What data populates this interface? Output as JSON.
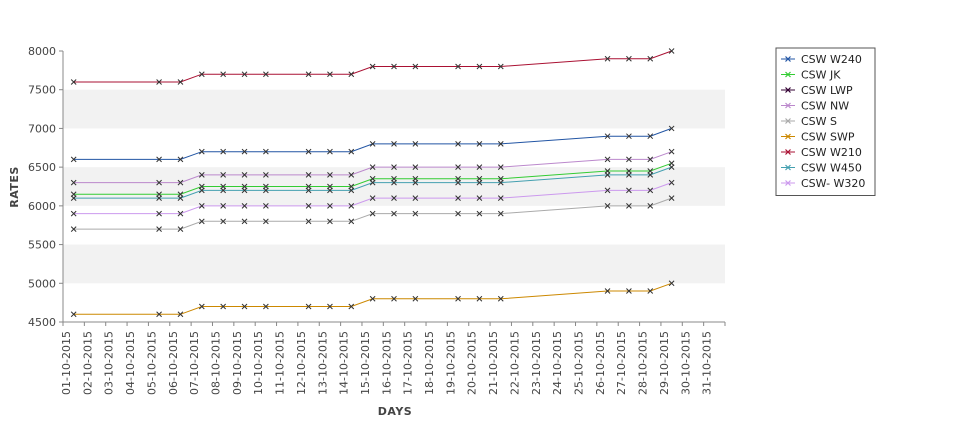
{
  "chart_data": {
    "type": "line",
    "title": "",
    "xlabel": "DAYS",
    "ylabel": "RATES",
    "ylim": [
      4500,
      8000
    ],
    "yticks": [
      4500,
      5000,
      5500,
      6000,
      6500,
      7000,
      7500,
      8000
    ],
    "grid": "alternating horizontal bands",
    "legend": "right",
    "categories": [
      "01-10-2015",
      "02-10-2015",
      "03-10-2015",
      "04-10-2015",
      "05-10-2015",
      "06-10-2015",
      "07-10-2015",
      "08-10-2015",
      "09-10-2015",
      "10-10-2015",
      "11-10-2015",
      "12-10-2015",
      "13-10-2015",
      "14-10-2015",
      "15-10-2015",
      "16-10-2015",
      "17-10-2015",
      "18-10-2015",
      "19-10-2015",
      "20-10-2015",
      "21-10-2015",
      "22-10-2015",
      "23-10-2015",
      "24-10-2015",
      "25-10-2015",
      "26-10-2015",
      "27-10-2015",
      "28-10-2015",
      "29-10-2015",
      "30-10-2015",
      "31-10-2015"
    ],
    "series": [
      {
        "name": "CSW  W240",
        "color": "#2255a4",
        "values": [
          6600,
          null,
          null,
          null,
          6600,
          6600,
          6700,
          6700,
          6700,
          6700,
          null,
          6700,
          6700,
          6700,
          6800,
          6800,
          6800,
          null,
          6800,
          6800,
          6800,
          null,
          null,
          null,
          null,
          6900,
          6900,
          6900,
          7000,
          null,
          null
        ]
      },
      {
        "name": "CSW JK",
        "color": "#33cc33",
        "values": [
          6150,
          null,
          null,
          null,
          6150,
          6150,
          6250,
          6250,
          6250,
          6250,
          null,
          6250,
          6250,
          6250,
          6350,
          6350,
          6350,
          null,
          6350,
          6350,
          6350,
          null,
          null,
          null,
          null,
          6450,
          6450,
          6450,
          6550,
          null,
          null
        ]
      },
      {
        "name": "CSW LWP",
        "color": "#330033",
        "values": [
          null,
          null,
          null,
          null,
          null,
          null,
          null,
          null,
          null,
          null,
          null,
          null,
          null,
          null,
          null,
          null,
          null,
          null,
          null,
          null,
          null,
          null,
          null,
          null,
          null,
          null,
          null,
          null,
          null,
          null,
          null
        ]
      },
      {
        "name": "CSW NW",
        "color": "#bb88cc",
        "values": [
          6300,
          null,
          null,
          null,
          6300,
          6300,
          6400,
          6400,
          6400,
          6400,
          null,
          6400,
          6400,
          6400,
          6500,
          6500,
          6500,
          null,
          6500,
          6500,
          6500,
          null,
          null,
          null,
          null,
          6600,
          6600,
          6600,
          6700,
          null,
          null
        ]
      },
      {
        "name": "CSW S",
        "color": "#aaaaaa",
        "values": [
          5700,
          null,
          null,
          null,
          5700,
          5700,
          5800,
          5800,
          5800,
          5800,
          null,
          5800,
          5800,
          5800,
          5900,
          5900,
          5900,
          null,
          5900,
          5900,
          5900,
          null,
          null,
          null,
          null,
          6000,
          6000,
          6000,
          6100,
          null,
          null
        ]
      },
      {
        "name": "CSW SWP",
        "color": "#cc8800",
        "values": [
          4600,
          null,
          null,
          null,
          4600,
          4600,
          4700,
          4700,
          4700,
          4700,
          null,
          4700,
          4700,
          4700,
          4800,
          4800,
          4800,
          null,
          4800,
          4800,
          4800,
          null,
          null,
          null,
          null,
          4900,
          4900,
          4900,
          5000,
          null,
          null
        ]
      },
      {
        "name": "CSW W210",
        "color": "#aa1133",
        "values": [
          7600,
          null,
          null,
          null,
          7600,
          7600,
          7700,
          7700,
          7700,
          7700,
          null,
          7700,
          7700,
          7700,
          7800,
          7800,
          7800,
          null,
          7800,
          7800,
          7800,
          null,
          null,
          null,
          null,
          7900,
          7900,
          7900,
          8000,
          null,
          null
        ]
      },
      {
        "name": "CSW W450",
        "color": "#44a0b0",
        "values": [
          6100,
          null,
          null,
          null,
          6100,
          6100,
          6200,
          6200,
          6200,
          6200,
          null,
          6200,
          6200,
          6200,
          6300,
          6300,
          6300,
          null,
          6300,
          6300,
          6300,
          null,
          null,
          null,
          null,
          6400,
          6400,
          6400,
          6500,
          null,
          null
        ]
      },
      {
        "name": "CSW- W320",
        "color": "#cc99ee",
        "values": [
          5900,
          null,
          null,
          null,
          5900,
          5900,
          6000,
          6000,
          6000,
          6000,
          null,
          6000,
          6000,
          6000,
          6100,
          6100,
          6100,
          null,
          6100,
          6100,
          6100,
          null,
          null,
          null,
          null,
          6200,
          6200,
          6200,
          6300,
          null,
          null
        ]
      }
    ]
  }
}
